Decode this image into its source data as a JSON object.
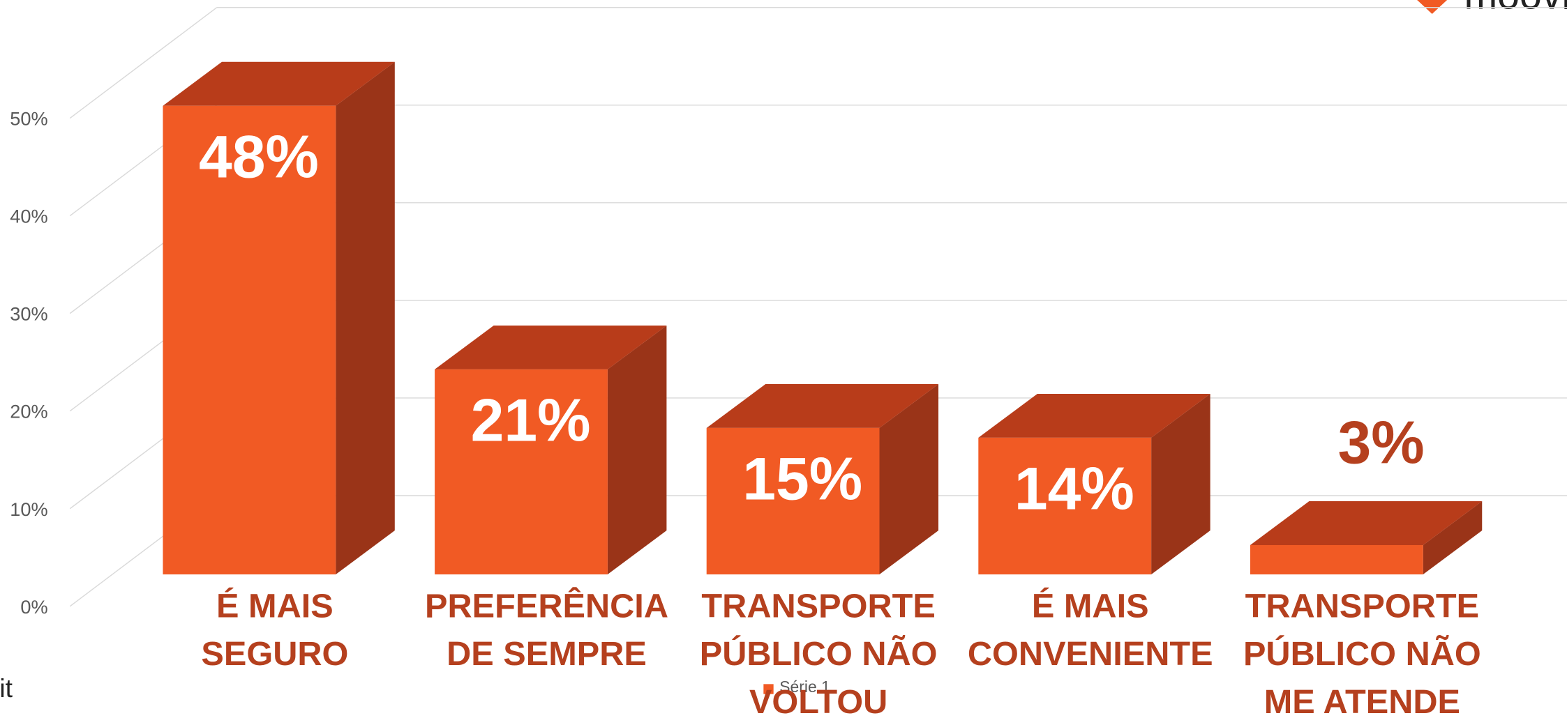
{
  "chart_data": {
    "type": "bar",
    "categories": [
      [
        "É MAIS",
        "SEGURO"
      ],
      [
        "PREFERÊNCIA",
        "DE SEMPRE"
      ],
      [
        "TRANSPORTE",
        "PÚBLICO NÃO",
        "VOLTOU"
      ],
      [
        "É MAIS",
        "CONVENIENTE"
      ],
      [
        "TRANSPORTE",
        "PÚBLICO NÃO",
        "ME ATENDE"
      ]
    ],
    "series": [
      {
        "name": "Série 1",
        "color": "#f15a24",
        "values": [
          48,
          21,
          15,
          14,
          3
        ],
        "value_labels": [
          "48%",
          "21%",
          "15%",
          "14%",
          "3%"
        ]
      }
    ],
    "ylim": [
      0,
      50
    ],
    "yticks": [
      {
        "value": 0,
        "label": "0%"
      },
      {
        "value": 10,
        "label": "10%"
      },
      {
        "value": 20,
        "label": "20%"
      },
      {
        "value": 30,
        "label": "30%"
      },
      {
        "value": 40,
        "label": "40%"
      },
      {
        "value": 50,
        "label": "50%"
      }
    ],
    "grid": true,
    "logos": [
      "moovit",
      "moovit"
    ]
  }
}
